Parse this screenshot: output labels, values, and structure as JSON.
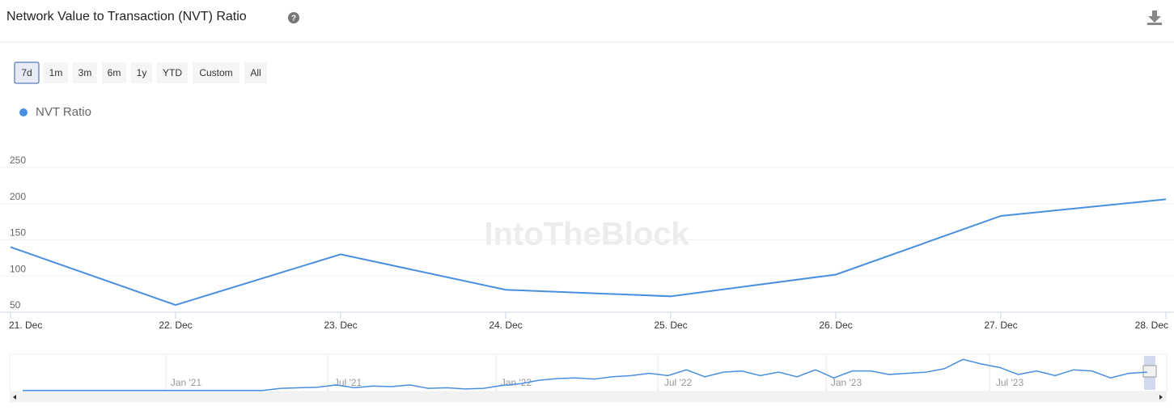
{
  "chart_data": {
    "type": "line",
    "title": "Network Value to Transaction (NVT) Ratio",
    "ranges": [
      "7d",
      "1m",
      "3m",
      "6m",
      "1y",
      "YTD",
      "Custom",
      "All"
    ],
    "selected_range": "7d",
    "categories": [
      "21. Dec",
      "22. Dec",
      "23. Dec",
      "24. Dec",
      "25. Dec",
      "26. Dec",
      "27. Dec",
      "28. Dec"
    ],
    "series": [
      {
        "name": "NVT Ratio",
        "color": "#4a8ee0",
        "values": [
          140,
          60,
          130,
          81,
          72,
          102,
          183,
          206
        ]
      }
    ],
    "ylim": [
      50,
      250
    ],
    "yticks": [
      50,
      100,
      150,
      200,
      250
    ],
    "grid": true,
    "watermark": "IntoTheBlock",
    "navigator": {
      "labels": [
        "Jan '21",
        "Jul '21",
        "Jan '22",
        "Jul '22",
        "Jan '23",
        "Jul '23"
      ],
      "ylim": [
        0,
        300
      ],
      "values": [
        2,
        2,
        2,
        2,
        2,
        2,
        2,
        2,
        2,
        2,
        2,
        2,
        2,
        2,
        20,
        25,
        30,
        50,
        25,
        40,
        35,
        50,
        20,
        25,
        15,
        20,
        45,
        60,
        90,
        105,
        110,
        100,
        120,
        130,
        150,
        130,
        180,
        120,
        160,
        170,
        130,
        160,
        120,
        180,
        110,
        170,
        170,
        140,
        150,
        160,
        190,
        270,
        230,
        200,
        140,
        170,
        130,
        180,
        170,
        110,
        150,
        160
      ]
    }
  }
}
